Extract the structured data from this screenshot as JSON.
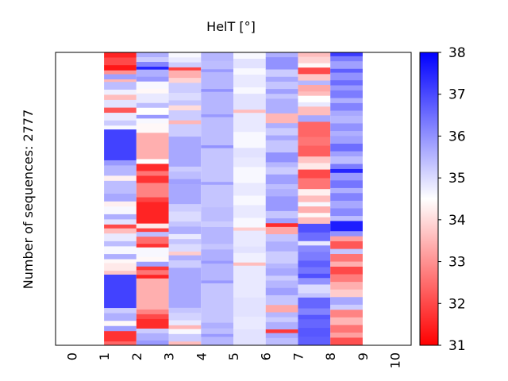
{
  "chart_data": {
    "type": "heatmap",
    "title": "HelT [°]",
    "xlabel": "",
    "ylabel": "Number of sequences: 2777",
    "x_ticks": [
      "0",
      "1",
      "2",
      "3",
      "4",
      "5",
      "6",
      "7",
      "8",
      "9",
      "10"
    ],
    "xlim": [
      0,
      10
    ],
    "colorbar": {
      "ticks": [
        "31",
        "32",
        "33",
        "34",
        "35",
        "36",
        "37",
        "38"
      ],
      "range": [
        31,
        38
      ],
      "colormap": "bwr",
      "low_color": "#ff0000",
      "mid_color": "#ffffff",
      "high_color": "#0000ff"
    },
    "n_rows": 2777,
    "columns": [
      {
        "position": 1,
        "segments": [
          [
            0.02,
            31.5
          ],
          [
            0.03,
            32.0
          ],
          [
            0.02,
            31.3
          ],
          [
            0.015,
            33.0
          ],
          [
            0.02,
            35.8
          ],
          [
            0.01,
            33.5
          ],
          [
            0.03,
            35.4
          ],
          [
            0.02,
            34.7
          ],
          [
            0.02,
            33.6
          ],
          [
            0.03,
            34.9
          ],
          [
            0.02,
            32.2
          ],
          [
            0.03,
            34.8
          ],
          [
            0.02,
            35.2
          ],
          [
            0.015,
            34.6
          ],
          [
            0.12,
            37.1
          ],
          [
            0.02,
            35.9
          ],
          [
            0.04,
            35.5
          ],
          [
            0.02,
            34.3
          ],
          [
            0.05,
            35.4
          ],
          [
            0.03,
            35.7
          ],
          [
            0.02,
            34.3
          ],
          [
            0.03,
            34.6
          ],
          [
            0.02,
            35.6
          ],
          [
            0.02,
            34.9
          ],
          [
            0.015,
            32.0
          ],
          [
            0.02,
            33.6
          ],
          [
            0.03,
            34.8
          ],
          [
            0.02,
            35.4
          ],
          [
            0.03,
            34.6
          ],
          [
            0.02,
            35.6
          ],
          [
            0.015,
            34.4
          ],
          [
            0.03,
            34.2
          ],
          [
            0.015,
            33.7
          ],
          [
            0.13,
            37.1
          ],
          [
            0.02,
            35.2
          ],
          [
            0.03,
            35.6
          ],
          [
            0.02,
            34.4
          ],
          [
            0.02,
            35.8
          ],
          [
            0.04,
            31.7
          ],
          [
            0.015,
            32.4
          ]
        ]
      },
      {
        "position": 2,
        "segments": [
          [
            0.02,
            35.6
          ],
          [
            0.02,
            35.2
          ],
          [
            0.02,
            36.2
          ],
          [
            0.012,
            37.5
          ],
          [
            0.03,
            35.6
          ],
          [
            0.02,
            35.9
          ],
          [
            0.03,
            34.6
          ],
          [
            0.02,
            34.4
          ],
          [
            0.04,
            34.8
          ],
          [
            0.02,
            35.4
          ],
          [
            0.03,
            34.5
          ],
          [
            0.015,
            35.9
          ],
          [
            0.02,
            34.6
          ],
          [
            0.04,
            34.4
          ],
          [
            0.11,
            33.4
          ],
          [
            0.02,
            34.5
          ],
          [
            0.03,
            31.6
          ],
          [
            0.02,
            32.6
          ],
          [
            0.03,
            31.7
          ],
          [
            0.06,
            32.8
          ],
          [
            0.02,
            31.9
          ],
          [
            0.09,
            31.5
          ],
          [
            0.02,
            34.2
          ],
          [
            0.015,
            31.9
          ],
          [
            0.02,
            35.4
          ],
          [
            0.03,
            32.5
          ],
          [
            0.015,
            31.7
          ],
          [
            0.04,
            34.6
          ],
          [
            0.02,
            34.4
          ],
          [
            0.02,
            35.8
          ],
          [
            0.015,
            31.8
          ],
          [
            0.02,
            32.6
          ],
          [
            0.015,
            31.5
          ],
          [
            0.13,
            33.4
          ],
          [
            0.02,
            32.8
          ],
          [
            0.02,
            32.0
          ],
          [
            0.04,
            31.6
          ],
          [
            0.02,
            35.2
          ],
          [
            0.03,
            35.6
          ],
          [
            0.02,
            35.9
          ]
        ]
      },
      {
        "position": 3,
        "segments": [
          [
            0.02,
            34.6
          ],
          [
            0.02,
            34.8
          ],
          [
            0.02,
            35.2
          ],
          [
            0.012,
            31.9
          ],
          [
            0.03,
            33.4
          ],
          [
            0.02,
            33.9
          ],
          [
            0.04,
            35.2
          ],
          [
            0.03,
            35.0
          ],
          [
            0.02,
            35.3
          ],
          [
            0.02,
            34.0
          ],
          [
            0.04,
            35.2
          ],
          [
            0.015,
            33.5
          ],
          [
            0.05,
            35.2
          ],
          [
            0.12,
            35.7
          ],
          [
            0.02,
            35.2
          ],
          [
            0.03,
            35.4
          ],
          [
            0.02,
            35.8
          ],
          [
            0.08,
            35.7
          ],
          [
            0.03,
            35.2
          ],
          [
            0.04,
            35.0
          ],
          [
            0.02,
            35.3
          ],
          [
            0.03,
            35.6
          ],
          [
            0.02,
            34.8
          ],
          [
            0.02,
            35.3
          ],
          [
            0.03,
            35.0
          ],
          [
            0.015,
            33.8
          ],
          [
            0.02,
            35.6
          ],
          [
            0.03,
            35.2
          ],
          [
            0.16,
            35.7
          ],
          [
            0.02,
            35.3
          ],
          [
            0.03,
            35.1
          ],
          [
            0.02,
            34.8
          ],
          [
            0.015,
            33.5
          ],
          [
            0.02,
            34.6
          ],
          [
            0.03,
            35.2
          ],
          [
            0.015,
            33.6
          ]
        ]
      },
      {
        "position": 4,
        "segments": [
          [
            0.03,
            35.5
          ],
          [
            0.03,
            35.4
          ],
          [
            0.01,
            35.9
          ],
          [
            0.06,
            35.5
          ],
          [
            0.01,
            36.0
          ],
          [
            0.08,
            35.5
          ],
          [
            0.01,
            35.9
          ],
          [
            0.1,
            35.4
          ],
          [
            0.01,
            36.0
          ],
          [
            0.12,
            35.3
          ],
          [
            0.01,
            35.8
          ],
          [
            0.08,
            35.3
          ],
          [
            0.05,
            35.4
          ],
          [
            0.02,
            35.2
          ],
          [
            0.06,
            35.5
          ],
          [
            0.02,
            35.3
          ],
          [
            0.04,
            35.6
          ],
          [
            0.01,
            35.9
          ],
          [
            0.06,
            35.5
          ],
          [
            0.01,
            35.9
          ],
          [
            0.14,
            35.3
          ],
          [
            0.02,
            35.6
          ],
          [
            0.02,
            35.4
          ],
          [
            0.01,
            35.9
          ],
          [
            0.03,
            35.5
          ]
        ]
      },
      {
        "position": 5,
        "segments": [
          [
            0.02,
            34.6
          ],
          [
            0.03,
            34.9
          ],
          [
            0.02,
            34.6
          ],
          [
            0.04,
            34.8
          ],
          [
            0.02,
            34.6
          ],
          [
            0.05,
            34.9
          ],
          [
            0.01,
            33.6
          ],
          [
            0.06,
            34.8
          ],
          [
            0.05,
            34.6
          ],
          [
            0.03,
            34.9
          ],
          [
            0.03,
            34.8
          ],
          [
            0.05,
            34.6
          ],
          [
            0.04,
            34.8
          ],
          [
            0.03,
            34.6
          ],
          [
            0.04,
            34.8
          ],
          [
            0.03,
            34.6
          ],
          [
            0.01,
            33.8
          ],
          [
            0.05,
            34.8
          ],
          [
            0.02,
            34.9
          ],
          [
            0.03,
            34.7
          ],
          [
            0.01,
            33.6
          ],
          [
            0.1,
            34.8
          ],
          [
            0.06,
            34.9
          ],
          [
            0.04,
            34.8
          ],
          [
            0.05,
            34.9
          ]
        ]
      },
      {
        "position": 6,
        "segments": [
          [
            0.02,
            35.6
          ],
          [
            0.05,
            36.0
          ],
          [
            0.03,
            35.2
          ],
          [
            0.02,
            35.7
          ],
          [
            0.03,
            35.3
          ],
          [
            0.02,
            35.8
          ],
          [
            0.02,
            35.3
          ],
          [
            0.06,
            35.6
          ],
          [
            0.04,
            33.5
          ],
          [
            0.02,
            35.6
          ],
          [
            0.03,
            35.2
          ],
          [
            0.02,
            35.7
          ],
          [
            0.05,
            35.3
          ],
          [
            0.04,
            36.0
          ],
          [
            0.02,
            35.5
          ],
          [
            0.03,
            35.2
          ],
          [
            0.04,
            35.8
          ],
          [
            0.02,
            35.4
          ],
          [
            0.03,
            35.6
          ],
          [
            0.06,
            35.9
          ],
          [
            0.03,
            35.3
          ],
          [
            0.02,
            35.8
          ],
          [
            0.015,
            31.6
          ],
          [
            0.03,
            33.3
          ],
          [
            0.03,
            35.3
          ],
          [
            0.04,
            35.6
          ],
          [
            0.05,
            35.2
          ],
          [
            0.02,
            35.5
          ],
          [
            0.03,
            35.7
          ],
          [
            0.02,
            35.2
          ],
          [
            0.03,
            35.5
          ],
          [
            0.03,
            35.8
          ],
          [
            0.04,
            35.3
          ],
          [
            0.03,
            33.3
          ],
          [
            0.02,
            35.5
          ],
          [
            0.02,
            35.2
          ],
          [
            0.03,
            35.6
          ],
          [
            0.015,
            31.8
          ],
          [
            0.02,
            35.7
          ],
          [
            0.03,
            35.4
          ]
        ]
      },
      {
        "position": 7,
        "segments": [
          [
            0.02,
            33.6
          ],
          [
            0.03,
            33.9
          ],
          [
            0.02,
            34.4
          ],
          [
            0.03,
            32.0
          ],
          [
            0.03,
            33.7
          ],
          [
            0.02,
            35.5
          ],
          [
            0.03,
            33.3
          ],
          [
            0.02,
            33.6
          ],
          [
            0.03,
            34.5
          ],
          [
            0.02,
            34.8
          ],
          [
            0.04,
            33.6
          ],
          [
            0.03,
            35.7
          ],
          [
            0.07,
            32.4
          ],
          [
            0.04,
            32.6
          ],
          [
            0.05,
            32.3
          ],
          [
            0.03,
            33.7
          ],
          [
            0.03,
            34.2
          ],
          [
            0.04,
            32.0
          ],
          [
            0.05,
            32.6
          ],
          [
            0.03,
            34.3
          ],
          [
            0.03,
            33.6
          ],
          [
            0.02,
            34.6
          ],
          [
            0.03,
            33.4
          ],
          [
            0.02,
            34.4
          ],
          [
            0.03,
            33.6
          ],
          [
            0.04,
            36.9
          ],
          [
            0.04,
            36.5
          ],
          [
            0.02,
            34.8
          ],
          [
            0.03,
            36.1
          ],
          [
            0.04,
            36.3
          ],
          [
            0.03,
            36.7
          ],
          [
            0.03,
            36.4
          ],
          [
            0.02,
            36.9
          ],
          [
            0.03,
            36.0
          ],
          [
            0.04,
            35.0
          ],
          [
            0.02,
            35.3
          ],
          [
            0.05,
            36.6
          ],
          [
            0.03,
            36.2
          ],
          [
            0.02,
            36.8
          ],
          [
            0.04,
            36.6
          ],
          [
            0.04,
            36.8
          ],
          [
            0.04,
            36.7
          ]
        ]
      },
      {
        "position": 8,
        "segments": [
          [
            0.015,
            37.2
          ],
          [
            0.02,
            36.3
          ],
          [
            0.03,
            35.8
          ],
          [
            0.015,
            36.7
          ],
          [
            0.03,
            36.0
          ],
          [
            0.02,
            36.5
          ],
          [
            0.02,
            35.9
          ],
          [
            0.03,
            36.3
          ],
          [
            0.02,
            35.6
          ],
          [
            0.03,
            36.2
          ],
          [
            0.02,
            35.7
          ],
          [
            0.03,
            35.5
          ],
          [
            0.03,
            36.0
          ],
          [
            0.02,
            35.6
          ],
          [
            0.03,
            35.8
          ],
          [
            0.03,
            36.5
          ],
          [
            0.02,
            35.8
          ],
          [
            0.03,
            35.4
          ],
          [
            0.02,
            36.3
          ],
          [
            0.015,
            37.5
          ],
          [
            0.03,
            35.9
          ],
          [
            0.03,
            36.4
          ],
          [
            0.02,
            35.6
          ],
          [
            0.03,
            36.2
          ],
          [
            0.03,
            35.7
          ],
          [
            0.03,
            36.1
          ],
          [
            0.02,
            35.4
          ],
          [
            0.04,
            37.6
          ],
          [
            0.02,
            36.0
          ],
          [
            0.02,
            33.2
          ],
          [
            0.03,
            32.2
          ],
          [
            0.02,
            35.3
          ],
          [
            0.03,
            32.6
          ],
          [
            0.02,
            33.4
          ],
          [
            0.03,
            32.0
          ],
          [
            0.03,
            32.7
          ],
          [
            0.03,
            33.4
          ],
          [
            0.03,
            33.8
          ],
          [
            0.03,
            35.7
          ],
          [
            0.02,
            35.2
          ],
          [
            0.03,
            32.8
          ],
          [
            0.03,
            33.5
          ],
          [
            0.03,
            32.6
          ],
          [
            0.02,
            33.2
          ],
          [
            0.03,
            32.1
          ]
        ]
      }
    ]
  }
}
